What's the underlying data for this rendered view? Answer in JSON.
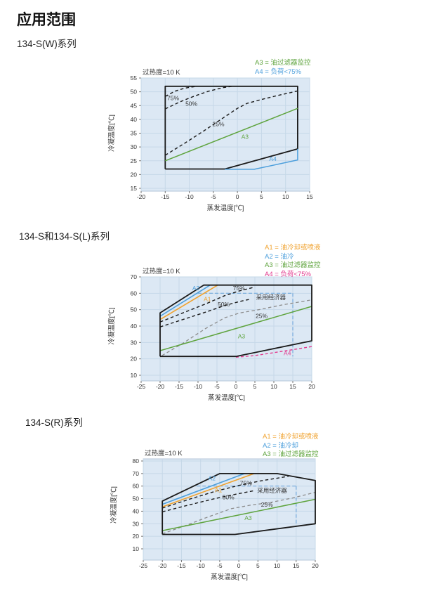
{
  "page": {
    "title": "应用范围",
    "sections": [
      "134-S(W)系列",
      "134-S和134-S(L)系列",
      "134-S(R)系列"
    ]
  },
  "colors": {
    "plot_bg": "#dce8f4",
    "plot_border": "#b3c6d9",
    "grid": "#c6d8e8",
    "axis": "#777777",
    "text": "#333333",
    "black_line": "#1a1a1a",
    "green": "#5fa43e",
    "blue": "#4d9fdc",
    "orange": "#f0a22e",
    "pink": "#e23a8e",
    "gray": "#8c8c8c",
    "econ_blue": "#74a9dc"
  },
  "chart_data": [
    {
      "type": "line",
      "section": "134-S(W)系列",
      "title": "过热度=10 K",
      "xlabel": "蒸发温度[℃]",
      "ylabel": "冷凝温度[℃]",
      "xlim": [
        -20,
        15
      ],
      "xstep": 5,
      "ylim": [
        15,
        55
      ],
      "ystep": 5,
      "grid": true,
      "legend_position": "top-right",
      "legend": [
        {
          "label": "A3 = 油过滤器监控",
          "color_key": "green"
        },
        {
          "label": "A4 = 负荷<75%",
          "color_key": "blue"
        }
      ],
      "series": [
        {
          "name": "operating-envelope",
          "color_key": "black_line",
          "width": 1.8,
          "points": [
            [
              -15,
              22
            ],
            [
              -15,
              52
            ],
            [
              12.5,
              52
            ],
            [
              12.5,
              29.3
            ],
            [
              -2.6,
              22
            ],
            [
              -15,
              22
            ]
          ]
        },
        {
          "name": "A4-load-below-75",
          "color_key": "blue",
          "width": 1.5,
          "points": [
            [
              -2.6,
              21.9
            ],
            [
              3.5,
              21.9
            ],
            [
              12.5,
              25.3
            ],
            [
              12.5,
              29.3
            ]
          ]
        },
        {
          "name": "A3-oil-filter-monitoring",
          "color_key": "green",
          "width": 1.5,
          "points": [
            [
              -15,
              25
            ],
            [
              12.5,
              44
            ]
          ]
        },
        {
          "name": "limit-75pct",
          "color_key": "black_line",
          "width": 1.4,
          "dash": "4.5 3.5",
          "points": [
            [
              -15,
              48.3
            ],
            [
              -13,
              50.2
            ],
            [
              -11,
              51.3
            ],
            [
              -8.5,
              52
            ]
          ]
        },
        {
          "name": "limit-50pct",
          "color_key": "black_line",
          "width": 1.4,
          "dash": "4.5 3.5",
          "points": [
            [
              -15,
              43.8
            ],
            [
              -12,
              46.3
            ],
            [
              -9,
              48.4
            ],
            [
              -6,
              50.2
            ],
            [
              -3,
              51.5
            ],
            [
              -1,
              52
            ]
          ]
        },
        {
          "name": "limit-25pct",
          "color_key": "black_line",
          "width": 1.4,
          "dash": "4.5 3.5",
          "points": [
            [
              -15,
              27
            ],
            [
              -11,
              31.3
            ],
            [
              -7,
              35.8
            ],
            [
              -3,
              40.5
            ],
            [
              0,
              44
            ],
            [
              2,
              45.8
            ],
            [
              5,
              47.2
            ],
            [
              8,
              48.5
            ],
            [
              12.5,
              50.3
            ]
          ]
        }
      ],
      "annotations": [
        {
          "text": "75%",
          "x": -14.6,
          "y": 47.0,
          "color_key": "text"
        },
        {
          "text": "50%",
          "x": -10.8,
          "y": 45.0,
          "color_key": "text"
        },
        {
          "text": "25%",
          "x": -5.2,
          "y": 37.6,
          "color_key": "text"
        },
        {
          "text": "A3",
          "x": 0.8,
          "y": 33.0,
          "color_key": "green"
        },
        {
          "text": "A4",
          "x": 6.6,
          "y": 25.0,
          "color_key": "blue"
        }
      ]
    },
    {
      "type": "line",
      "section": "134-S和134-S(L)系列",
      "title": "过热度=10 K",
      "xlabel": "蒸发温度[℃]",
      "ylabel": "冷凝温度[℃]",
      "xlim": [
        -25,
        20
      ],
      "xstep": 5,
      "ylim": [
        10,
        70
      ],
      "ystep": 10,
      "grid": true,
      "legend_position": "top-right",
      "legend": [
        {
          "label": "A1 = 油冷却或喷液",
          "color_key": "orange"
        },
        {
          "label": "A2 = 油冷",
          "color_key": "blue"
        },
        {
          "label": "A3 = 油过滤器监控",
          "color_key": "green"
        },
        {
          "label": "A4 = 负荷<75%",
          "color_key": "pink"
        }
      ],
      "series": [
        {
          "name": "economizer-horizontal",
          "color_key": "econ_blue",
          "width": 1.2,
          "dash": "5 3",
          "points": [
            [
              -10,
              60
            ],
            [
              15,
              60
            ]
          ]
        },
        {
          "name": "economizer-vertical",
          "color_key": "econ_blue",
          "width": 1.2,
          "dash": "5 3",
          "points": [
            [
              15,
              60
            ],
            [
              15,
              21.5
            ]
          ]
        },
        {
          "name": "limit-75pct",
          "color_key": "black_line",
          "width": 1.4,
          "dash": "4.5 3.5",
          "points": [
            [
              -20,
              42.5
            ],
            [
              -14,
              48
            ],
            [
              -8,
              53.5
            ],
            [
              -3,
              58.5
            ],
            [
              1,
              61.5
            ],
            [
              5,
              63.8
            ]
          ]
        },
        {
          "name": "limit-50pct",
          "color_key": "black_line",
          "width": 1.4,
          "dash": "4.5 3.5",
          "points": [
            [
              -20,
              39.5
            ],
            [
              -14,
              44
            ],
            [
              -8,
              48.5
            ],
            [
              -3,
              52.5
            ],
            [
              1,
              55
            ],
            [
              4,
              56.5
            ]
          ]
        },
        {
          "name": "limit-25pct",
          "color_key": "gray",
          "width": 1.3,
          "dash": "4.5 3.5",
          "points": [
            [
              -19.5,
              22
            ],
            [
              -14,
              29.5
            ],
            [
              -8,
              38.5
            ],
            [
              -3,
              45
            ],
            [
              1,
              48
            ],
            [
              6,
              50
            ],
            [
              12,
              52.8
            ],
            [
              20,
              56
            ]
          ]
        },
        {
          "name": "A2-oil-cooling",
          "color_key": "blue",
          "width": 1.6,
          "points": [
            [
              -20,
              46
            ],
            [
              -6.8,
              65
            ]
          ]
        },
        {
          "name": "A1-oil-cooling-or-liquid-injection",
          "color_key": "orange",
          "width": 1.6,
          "points": [
            [
              -20,
              44
            ],
            [
              -4.8,
              65
            ]
          ]
        },
        {
          "name": "A3-oil-filter-monitoring",
          "color_key": "green",
          "width": 1.5,
          "points": [
            [
              -20,
              25
            ],
            [
              20,
              52
            ]
          ]
        },
        {
          "name": "A4-load-below-75",
          "color_key": "pink",
          "width": 1.4,
          "dash": "4 3",
          "points": [
            [
              0,
              21
            ],
            [
              5,
              22
            ],
            [
              10,
              23.8
            ],
            [
              15,
              25.6
            ],
            [
              20,
              27.5
            ]
          ]
        },
        {
          "name": "operating-envelope",
          "color_key": "black_line",
          "width": 1.8,
          "points": [
            [
              -20,
              21.5
            ],
            [
              -20,
              48
            ],
            [
              -8.5,
              65
            ],
            [
              20,
              65
            ],
            [
              20,
              31
            ],
            [
              0,
              21.5
            ],
            [
              -20,
              21.5
            ]
          ]
        }
      ],
      "annotations": [
        {
          "text": "A2",
          "x": -11.5,
          "y": 61.8,
          "color_key": "blue"
        },
        {
          "text": "A1",
          "x": -8.5,
          "y": 55.2,
          "color_key": "orange"
        },
        {
          "text": "75%",
          "x": -0.8,
          "y": 61.8,
          "color_key": "text"
        },
        {
          "text": "50%",
          "x": -4.8,
          "y": 52.0,
          "color_key": "text"
        },
        {
          "text": "25%",
          "x": 5.2,
          "y": 45.0,
          "color_key": "text"
        },
        {
          "text": "采用经济器",
          "x": 5.3,
          "y": 56.2,
          "color_key": "text"
        },
        {
          "text": "A3",
          "x": 0.5,
          "y": 32.6,
          "color_key": "green"
        },
        {
          "text": "A4",
          "x": 12.6,
          "y": 22.3,
          "color_key": "pink"
        }
      ]
    },
    {
      "type": "line",
      "section": "134-S(R)系列",
      "title": "过热度=10 K",
      "xlabel": "蒸发温度[℃]",
      "ylabel": "冷凝温度[℃]",
      "xlim": [
        -25,
        20
      ],
      "xstep": 5,
      "ylim": [
        10,
        80
      ],
      "ystep": 10,
      "grid": true,
      "legend_position": "top-right",
      "legend": [
        {
          "label": "A1 = 油冷却或喷液",
          "color_key": "orange"
        },
        {
          "label": "A2 = 油冷却",
          "color_key": "blue"
        },
        {
          "label": "A3 = 油过滤器监控",
          "color_key": "green"
        }
      ],
      "series": [
        {
          "name": "economizer-horizontal",
          "color_key": "econ_blue",
          "width": 1.2,
          "dash": "5 3",
          "points": [
            [
              -11,
              60
            ],
            [
              15,
              60
            ]
          ]
        },
        {
          "name": "economizer-vertical",
          "color_key": "econ_blue",
          "width": 1.2,
          "dash": "5 3",
          "points": [
            [
              15,
              60
            ],
            [
              15,
              28.5
            ]
          ]
        },
        {
          "name": "limit-75pct",
          "color_key": "black_line",
          "width": 1.4,
          "dash": "4.5 3.5",
          "points": [
            [
              -20,
              42.5
            ],
            [
              -13,
              49.5
            ],
            [
              -6,
              56
            ],
            [
              0,
              60.5
            ],
            [
              6,
              64.3
            ],
            [
              13,
              67.8
            ]
          ]
        },
        {
          "name": "limit-50pct",
          "color_key": "black_line",
          "width": 1.4,
          "dash": "4.5 3.5",
          "points": [
            [
              -20,
              39.5
            ],
            [
              -13,
              45
            ],
            [
              -6,
              50.2
            ],
            [
              0,
              54
            ],
            [
              4,
              56.3
            ]
          ]
        },
        {
          "name": "limit-25pct",
          "color_key": "gray",
          "width": 1.3,
          "dash": "4.5 3.5",
          "points": [
            [
              -20,
              22
            ],
            [
              -14,
              28.5
            ],
            [
              -8,
              35.5
            ],
            [
              -2,
              42
            ],
            [
              3,
              44.8
            ],
            [
              8,
              46.8
            ],
            [
              14,
              50.5
            ],
            [
              20,
              55
            ]
          ]
        },
        {
          "name": "A2-oil-cooling",
          "color_key": "blue",
          "width": 1.6,
          "points": [
            [
              -20,
              45.5
            ],
            [
              1.5,
              70
            ]
          ]
        },
        {
          "name": "A1-oil-cooling-or-liquid-injection",
          "color_key": "orange",
          "width": 1.6,
          "points": [
            [
              -20,
              43.5
            ],
            [
              4,
              70
            ]
          ]
        },
        {
          "name": "A3-oil-filter-monitoring",
          "color_key": "green",
          "width": 1.5,
          "points": [
            [
              -20,
              24.5
            ],
            [
              20,
              49.5
            ]
          ]
        },
        {
          "name": "operating-envelope",
          "color_key": "black_line",
          "width": 1.8,
          "points": [
            [
              -20,
              21.5
            ],
            [
              -20,
              48
            ],
            [
              -5,
              70
            ],
            [
              10,
              70
            ],
            [
              20,
              64.5
            ],
            [
              20,
              30
            ],
            [
              -1,
              21.5
            ],
            [
              -20,
              21.5
            ]
          ]
        }
      ],
      "annotations": [
        {
          "text": "A2",
          "x": -8.0,
          "y": 64.6,
          "color_key": "blue"
        },
        {
          "text": "A1",
          "x": -6.3,
          "y": 55.2,
          "color_key": "orange"
        },
        {
          "text": "75%",
          "x": 0.3,
          "y": 60.8,
          "color_key": "text"
        },
        {
          "text": "50%",
          "x": -4.3,
          "y": 49.6,
          "color_key": "text"
        },
        {
          "text": "25%",
          "x": 5.8,
          "y": 43.6,
          "color_key": "text"
        },
        {
          "text": "采用经济器",
          "x": 4.8,
          "y": 54.8,
          "color_key": "text"
        },
        {
          "text": "A3",
          "x": 1.5,
          "y": 33.0,
          "color_key": "green"
        }
      ]
    }
  ]
}
